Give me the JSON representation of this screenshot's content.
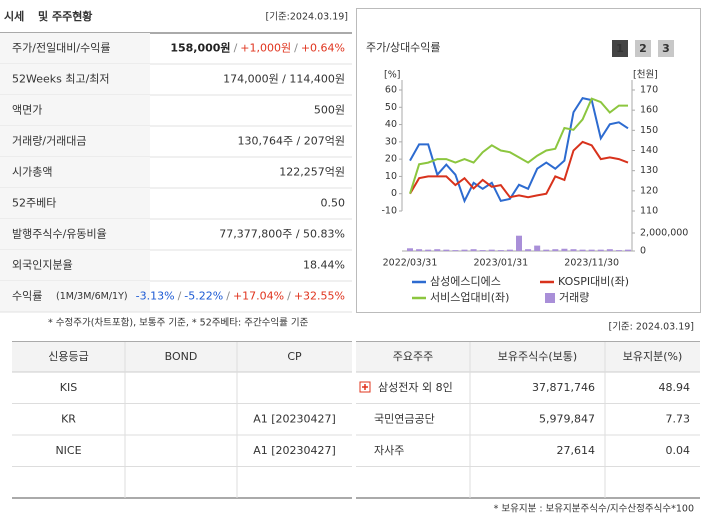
{
  "summary": {
    "title_highlight": "시세",
    "title": "및 주주현황",
    "as_of": "[기준:2024.03.19]",
    "rows": [
      {
        "label": "주가/전일대비/수익률",
        "value": [
          {
            "text": "158,000원",
            "color": "#222222",
            "bold": true
          },
          {
            "text": "/",
            "color": "#888888"
          },
          {
            "text": "+1,000원",
            "color": "#e0341e"
          },
          {
            "text": "/",
            "color": "#888888"
          },
          {
            "text": "+0.64%",
            "color": "#e0341e"
          }
        ]
      },
      {
        "label": "52Weeks 최고/최저",
        "value": "174,000원 / 114,400원"
      },
      {
        "label": "액면가",
        "value": "500원"
      },
      {
        "label": "거래량/거래대금",
        "value": "130,764주 / 207억원"
      },
      {
        "label": "시가총액",
        "value": "122,257억원"
      },
      {
        "label": "52주베타",
        "value": "0.50"
      },
      {
        "label": "발행주식수/유동비율",
        "value": "77,377,800주 / 50.83%"
      },
      {
        "label": "외국인지분율",
        "value": "18.44%"
      },
      {
        "label": "수익률",
        "label_note": "(1M/3M/6M/1Y)",
        "value": [
          {
            "text": "-3.13%",
            "color": "#1c5ad4"
          },
          {
            "text": "/",
            "color": "#888888"
          },
          {
            "text": "-5.22%",
            "color": "#1c5ad4"
          },
          {
            "text": "/",
            "color": "#888888"
          },
          {
            "text": "+17.04%",
            "color": "#e0341e"
          },
          {
            "text": "/",
            "color": "#888888"
          },
          {
            "text": "+32.55%",
            "color": "#e0341e"
          }
        ]
      }
    ],
    "footnote": "* 수정주가(차트포함), 보통주 기준, * 52주베타: 주간수익률 기준"
  },
  "chart_data": {
    "type": "line",
    "title": "주가/상대수익률",
    "buttons": [
      "1",
      "2",
      "3"
    ],
    "y_label": "[%]",
    "y2_label": "[천원]",
    "categories": [
      "2022/03/31",
      null,
      null,
      null,
      null,
      null,
      null,
      null,
      null,
      null,
      "2023/01/31",
      null,
      null,
      null,
      null,
      null,
      null,
      null,
      null,
      null,
      "2023/11/30",
      null,
      null,
      null,
      null
    ],
    "series": [
      {
        "name": "삼성에스디에스",
        "color": "#2d6bd0",
        "axis": "y2",
        "values": [
          135,
          143,
          143,
          128,
          133,
          128,
          115,
          124,
          121,
          124,
          115,
          116,
          123,
          121,
          131,
          134,
          131,
          135,
          159,
          166,
          165,
          146,
          153,
          154,
          151
        ]
      },
      {
        "name": "KOSPI대비(좌)",
        "color": "#d8321c",
        "values": [
          0,
          9,
          10,
          10,
          10,
          5,
          9,
          3,
          8,
          4,
          5,
          -2,
          -1,
          -2,
          -1,
          0,
          10,
          8,
          25,
          30,
          28,
          20,
          21,
          20,
          18
        ]
      },
      {
        "name": "서비스업대비(좌)",
        "color": "#8cc63f",
        "values": [
          0,
          17,
          18,
          20,
          20,
          18,
          20,
          18,
          24,
          28,
          25,
          24,
          21,
          18,
          22,
          25,
          26,
          38,
          37,
          43,
          55,
          53,
          47,
          51,
          51
        ]
      },
      {
        "name": "거래량",
        "color": "#a98fd8",
        "type": "bar",
        "axis": "y3",
        "values": [
          300000,
          200000,
          150000,
          200000,
          150000,
          100000,
          150000,
          200000,
          100000,
          150000,
          100000,
          150000,
          1700000,
          200000,
          600000,
          150000,
          200000,
          250000,
          200000,
          150000,
          150000,
          150000,
          200000,
          100000,
          150000
        ]
      }
    ],
    "ylim": [
      -10,
      60
    ],
    "yticks": [
      -10,
      0,
      10,
      20,
      30,
      40,
      50,
      60
    ],
    "y2lim": [
      110,
      170
    ],
    "y2ticks": [
      110,
      120,
      130,
      140,
      150,
      160,
      170
    ],
    "y3lim": [
      0,
      2000000
    ],
    "y3ticks": [
      0,
      {
        "value": 2000000,
        "label": "2,000,000"
      }
    ],
    "as_of": "[기준: 2024.03.19]"
  },
  "credit_table": {
    "headers": [
      "신용등급",
      "BOND",
      "CP"
    ],
    "rows": [
      [
        "KIS",
        null,
        null
      ],
      [
        "KR",
        null,
        "A1 [20230427]"
      ],
      [
        "NICE",
        null,
        "A1 [20230427]"
      ],
      [
        null,
        null,
        null
      ]
    ]
  },
  "holder_table": {
    "headers": [
      "주요주주",
      "보유주식수(보통)",
      "보유지분(%)"
    ],
    "rows": [
      [
        "삼성전자 외 8인",
        "37,871,746",
        "48.94"
      ],
      [
        "국민연금공단",
        "5,979,847",
        "7.73"
      ],
      [
        "자사주",
        "27,614",
        "0.04"
      ],
      [
        null,
        null,
        null
      ]
    ],
    "footnote": "* 보유지분 : 보유지분주식수/지수산정주식수*100"
  }
}
